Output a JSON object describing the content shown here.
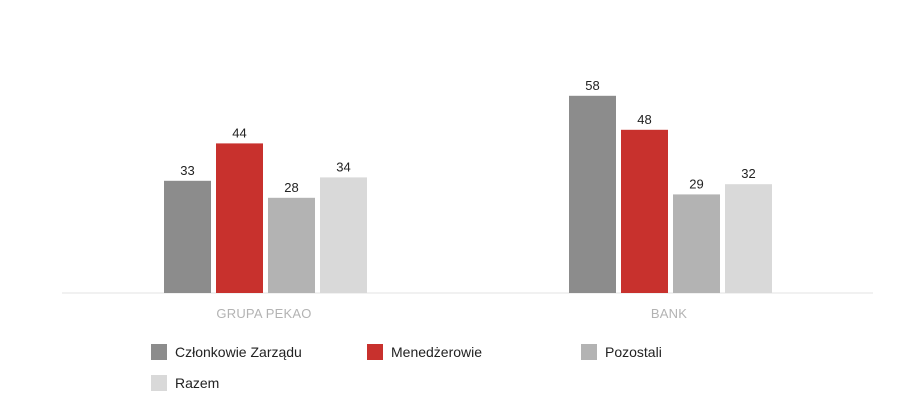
{
  "chart_data": {
    "type": "bar",
    "categories": [
      "GRUPA PEKAO",
      "BANK"
    ],
    "series": [
      {
        "name": "Członkowie Zarządu",
        "color": "#8c8c8c",
        "values": [
          33,
          58
        ]
      },
      {
        "name": "Menedżerowie",
        "color": "#c8312d",
        "values": [
          44,
          48
        ]
      },
      {
        "name": "Pozostali",
        "color": "#b3b3b3",
        "values": [
          28,
          29
        ]
      },
      {
        "name": "Razem",
        "color": "#d9d9d9",
        "values": [
          34,
          32
        ]
      }
    ],
    "ylim": [
      0,
      60
    ],
    "data_labels": true,
    "grid": false,
    "legend_position": "bottom-left"
  }
}
